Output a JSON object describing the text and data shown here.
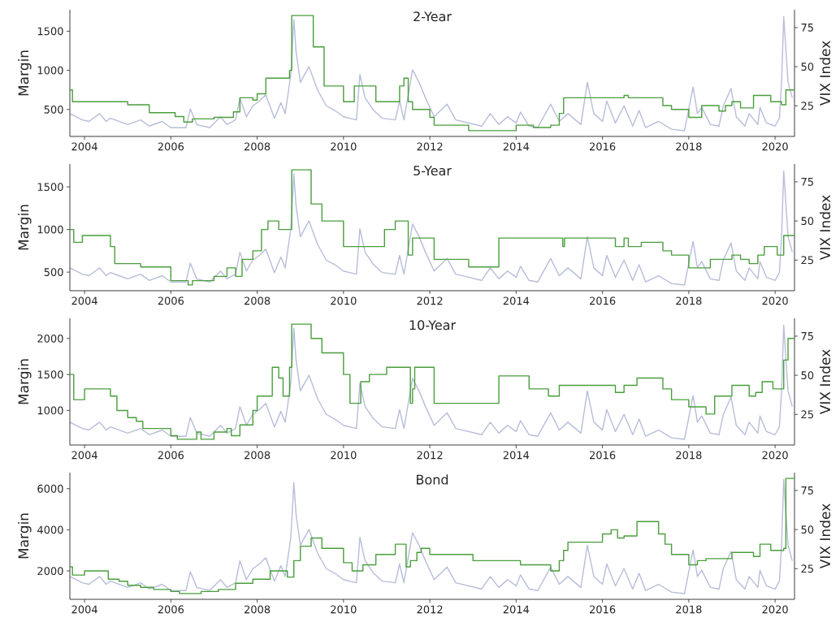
{
  "chart_data": [
    {
      "type": "line",
      "title": "2-Year",
      "ylabel": "Margin",
      "y2label": "VIX Index",
      "xlim": [
        2003.66,
        2020.45
      ],
      "xticks": [
        2004,
        2006,
        2008,
        2010,
        2012,
        2014,
        2016,
        2018,
        2020
      ],
      "ylim": [
        156,
        1774
      ],
      "yticks": [
        500,
        1000,
        1500
      ],
      "y2lim": [
        5.4,
        86.4
      ],
      "y2ticks": [
        25,
        50,
        75
      ],
      "tick_labels": "xy",
      "series": [
        {
          "type": "line",
          "axis": "y2",
          "color": "#b7bdd9",
          "x": [
            2003.66,
            2003.8,
            2003.95,
            2004.1,
            2004.25,
            2004.35,
            2004.5,
            2004.6,
            2004.8,
            2005.0,
            2005.3,
            2005.5,
            2005.8,
            2006.0,
            2006.35,
            2006.45,
            2006.6,
            2006.9,
            2007.15,
            2007.3,
            2007.5,
            2007.6,
            2007.75,
            2007.9,
            2008.05,
            2008.2,
            2008.4,
            2008.55,
            2008.65,
            2008.78,
            2008.85,
            2008.9,
            2009.0,
            2009.2,
            2009.4,
            2009.6,
            2009.8,
            2010.0,
            2010.3,
            2010.38,
            2010.5,
            2010.7,
            2010.9,
            2011.2,
            2011.3,
            2011.4,
            2011.6,
            2011.75,
            2011.9,
            2012.1,
            2012.4,
            2012.6,
            2012.9,
            2013.2,
            2013.4,
            2013.6,
            2013.8,
            2014.0,
            2014.1,
            2014.3,
            2014.5,
            2014.8,
            2015.0,
            2015.2,
            2015.5,
            2015.65,
            2015.8,
            2016.0,
            2016.1,
            2016.3,
            2016.5,
            2016.7,
            2016.85,
            2017.0,
            2017.3,
            2017.6,
            2017.9,
            2018.1,
            2018.2,
            2018.3,
            2018.5,
            2018.7,
            2018.8,
            2018.98,
            2019.1,
            2019.3,
            2019.4,
            2019.6,
            2019.65,
            2019.8,
            2020.0,
            2020.1,
            2020.15,
            2020.2,
            2020.3,
            2020.4
          ],
          "values": [
            20,
            18,
            16,
            15,
            18,
            20,
            15,
            17,
            15,
            13,
            16,
            12,
            15,
            11,
            11,
            23,
            13,
            11,
            18,
            13,
            16,
            30,
            18,
            25,
            28,
            32,
            17,
            27,
            20,
            45,
            80,
            60,
            40,
            50,
            35,
            25,
            22,
            18,
            16,
            45,
            30,
            22,
            17,
            16,
            28,
            16,
            48,
            40,
            30,
            18,
            26,
            16,
            14,
            12,
            20,
            13,
            18,
            14,
            21,
            12,
            11,
            26,
            15,
            20,
            13,
            40,
            20,
            15,
            28,
            14,
            25,
            12,
            22,
            11,
            15,
            10,
            9,
            37,
            20,
            24,
            13,
            12,
            25,
            36,
            18,
            12,
            20,
            13,
            24,
            14,
            12,
            17,
            40,
            82,
            40,
            30
          ]
        },
        {
          "type": "step",
          "color": "#4a9e3c",
          "x": [
            2003.66,
            2003.72,
            2005.0,
            2005.5,
            2006.1,
            2006.3,
            2006.5,
            2007.0,
            2007.45,
            2007.6,
            2007.9,
            2008.0,
            2008.2,
            2008.75,
            2008.8,
            2009.3,
            2009.55,
            2010.0,
            2010.25,
            2010.75,
            2011.3,
            2011.4,
            2011.5,
            2011.6,
            2012.0,
            2012.1,
            2012.9,
            2014.0,
            2014.4,
            2014.8,
            2015.0,
            2015.1,
            2016.5,
            2016.6,
            2017.4,
            2017.6,
            2018.0,
            2018.3,
            2018.7,
            2018.85,
            2019.0,
            2019.2,
            2019.5,
            2019.9,
            2020.15,
            2020.25,
            2020.45
          ],
          "values": [
            750,
            600,
            560,
            460,
            410,
            340,
            380,
            400,
            470,
            650,
            620,
            700,
            900,
            1000,
            1700,
            1300,
            800,
            600,
            800,
            600,
            800,
            900,
            600,
            500,
            400,
            300,
            230,
            300,
            270,
            300,
            450,
            650,
            680,
            650,
            550,
            500,
            400,
            550,
            480,
            550,
            600,
            520,
            680,
            600,
            560,
            750,
            750
          ]
        }
      ]
    },
    {
      "type": "line",
      "title": "5-Year",
      "ylabel": "Margin",
      "y2label": "VIX Index",
      "xlim": [
        2003.66,
        2020.45
      ],
      "xticks": [
        2004,
        2006,
        2008,
        2010,
        2012,
        2014,
        2016,
        2018,
        2020
      ],
      "ylim": [
        282,
        1768
      ],
      "yticks": [
        500,
        1000,
        1500
      ],
      "y2lim": [
        5.4,
        86.4
      ],
      "y2ticks": [
        25,
        50,
        75
      ],
      "tick_labels": "xy",
      "series": [
        {
          "type": "line",
          "axis": "y2",
          "color": "#b7bdd9",
          "x": [
            2003.66,
            2003.8,
            2003.95,
            2004.1,
            2004.25,
            2004.35,
            2004.5,
            2004.6,
            2004.8,
            2005.0,
            2005.3,
            2005.5,
            2005.8,
            2006.0,
            2006.35,
            2006.45,
            2006.6,
            2006.9,
            2007.15,
            2007.3,
            2007.5,
            2007.6,
            2007.75,
            2007.9,
            2008.05,
            2008.2,
            2008.4,
            2008.55,
            2008.65,
            2008.78,
            2008.85,
            2008.9,
            2009.0,
            2009.2,
            2009.4,
            2009.6,
            2009.8,
            2010.0,
            2010.3,
            2010.38,
            2010.5,
            2010.7,
            2010.9,
            2011.2,
            2011.3,
            2011.4,
            2011.6,
            2011.75,
            2011.9,
            2012.1,
            2012.4,
            2012.6,
            2012.9,
            2013.2,
            2013.4,
            2013.6,
            2013.8,
            2014.0,
            2014.1,
            2014.3,
            2014.5,
            2014.8,
            2015.0,
            2015.2,
            2015.5,
            2015.65,
            2015.8,
            2016.0,
            2016.1,
            2016.3,
            2016.5,
            2016.7,
            2016.85,
            2017.0,
            2017.3,
            2017.6,
            2017.9,
            2018.1,
            2018.2,
            2018.3,
            2018.5,
            2018.7,
            2018.8,
            2018.98,
            2019.1,
            2019.3,
            2019.4,
            2019.6,
            2019.65,
            2019.8,
            2020.0,
            2020.1,
            2020.15,
            2020.2,
            2020.3,
            2020.4
          ],
          "values": [
            20,
            18,
            16,
            15,
            18,
            20,
            15,
            17,
            15,
            13,
            16,
            12,
            15,
            11,
            11,
            23,
            13,
            11,
            18,
            13,
            16,
            30,
            18,
            25,
            28,
            32,
            17,
            27,
            20,
            45,
            80,
            60,
            40,
            50,
            35,
            25,
            22,
            18,
            16,
            45,
            30,
            22,
            17,
            16,
            28,
            16,
            48,
            40,
            30,
            18,
            26,
            16,
            14,
            12,
            20,
            13,
            18,
            14,
            21,
            12,
            11,
            26,
            15,
            20,
            13,
            40,
            20,
            15,
            28,
            14,
            25,
            12,
            22,
            11,
            15,
            10,
            9,
            37,
            20,
            24,
            13,
            12,
            25,
            36,
            18,
            12,
            20,
            13,
            24,
            14,
            12,
            17,
            40,
            82,
            40,
            30
          ]
        },
        {
          "type": "step",
          "color": "#4a9e3c",
          "x": [
            2003.66,
            2003.75,
            2003.95,
            2004.6,
            2004.7,
            2005.3,
            2006.0,
            2006.4,
            2006.5,
            2007.0,
            2007.3,
            2007.5,
            2007.65,
            2007.9,
            2008.1,
            2008.25,
            2008.5,
            2008.8,
            2009.25,
            2009.5,
            2010.0,
            2010.95,
            2011.2,
            2011.5,
            2011.6,
            2012.1,
            2012.9,
            2013.6,
            2015.08,
            2015.12,
            2016.3,
            2016.5,
            2016.6,
            2016.9,
            2017.4,
            2017.6,
            2018.0,
            2018.5,
            2019.0,
            2019.2,
            2019.4,
            2019.6,
            2019.75,
            2020.05,
            2020.2,
            2020.45
          ],
          "values": [
            1000,
            850,
            930,
            800,
            600,
            560,
            400,
            350,
            400,
            450,
            550,
            450,
            650,
            750,
            1000,
            1100,
            1000,
            1700,
            1300,
            1100,
            800,
            1000,
            1100,
            700,
            900,
            650,
            560,
            900,
            800,
            900,
            800,
            900,
            800,
            850,
            750,
            700,
            550,
            650,
            700,
            650,
            600,
            700,
            800,
            700,
            930,
            930
          ]
        }
      ]
    },
    {
      "type": "line",
      "title": "10-Year",
      "ylabel": "Margin",
      "y2label": "VIX Index",
      "xlim": [
        2003.66,
        2020.45
      ],
      "xticks": [
        2004,
        2006,
        2008,
        2010,
        2012,
        2014,
        2016,
        2018,
        2020
      ],
      "ylim": [
        520,
        2280
      ],
      "yticks": [
        1000,
        1500,
        2000
      ],
      "y2lim": [
        5.4,
        86.4
      ],
      "y2ticks": [
        25,
        50,
        75
      ],
      "tick_labels": "xy",
      "series": [
        {
          "type": "line",
          "axis": "y2",
          "color": "#b7bdd9",
          "x": [
            2003.66,
            2003.8,
            2003.95,
            2004.1,
            2004.25,
            2004.35,
            2004.5,
            2004.6,
            2004.8,
            2005.0,
            2005.3,
            2005.5,
            2005.8,
            2006.0,
            2006.35,
            2006.45,
            2006.6,
            2006.9,
            2007.15,
            2007.3,
            2007.5,
            2007.6,
            2007.75,
            2007.9,
            2008.05,
            2008.2,
            2008.4,
            2008.55,
            2008.65,
            2008.78,
            2008.85,
            2008.9,
            2009.0,
            2009.2,
            2009.4,
            2009.6,
            2009.8,
            2010.0,
            2010.3,
            2010.38,
            2010.5,
            2010.7,
            2010.9,
            2011.2,
            2011.3,
            2011.4,
            2011.6,
            2011.75,
            2011.9,
            2012.1,
            2012.4,
            2012.6,
            2012.9,
            2013.2,
            2013.4,
            2013.6,
            2013.8,
            2014.0,
            2014.1,
            2014.3,
            2014.5,
            2014.8,
            2015.0,
            2015.2,
            2015.5,
            2015.65,
            2015.8,
            2016.0,
            2016.1,
            2016.3,
            2016.5,
            2016.7,
            2016.85,
            2017.0,
            2017.3,
            2017.6,
            2017.9,
            2018.1,
            2018.2,
            2018.3,
            2018.5,
            2018.7,
            2018.8,
            2018.98,
            2019.1,
            2019.3,
            2019.4,
            2019.6,
            2019.65,
            2019.8,
            2020.0,
            2020.1,
            2020.15,
            2020.2,
            2020.3,
            2020.4
          ],
          "values": [
            20,
            18,
            16,
            15,
            18,
            20,
            15,
            17,
            15,
            13,
            16,
            12,
            15,
            11,
            11,
            23,
            13,
            11,
            18,
            13,
            16,
            30,
            18,
            25,
            28,
            32,
            17,
            27,
            20,
            45,
            80,
            60,
            40,
            50,
            35,
            25,
            22,
            18,
            16,
            45,
            30,
            22,
            17,
            16,
            28,
            16,
            48,
            40,
            30,
            18,
            26,
            16,
            14,
            12,
            20,
            13,
            18,
            14,
            21,
            12,
            11,
            26,
            15,
            20,
            13,
            40,
            20,
            15,
            28,
            14,
            25,
            12,
            22,
            11,
            15,
            10,
            9,
            37,
            20,
            24,
            13,
            12,
            25,
            36,
            18,
            12,
            20,
            13,
            24,
            14,
            12,
            17,
            40,
            82,
            40,
            30
          ]
        },
        {
          "type": "step",
          "color": "#4a9e3c",
          "x": [
            2003.66,
            2003.75,
            2004.0,
            2004.6,
            2004.75,
            2005.0,
            2005.2,
            2005.35,
            2006.0,
            2006.15,
            2006.6,
            2006.7,
            2007.0,
            2007.3,
            2007.4,
            2007.6,
            2007.9,
            2008.0,
            2008.35,
            2008.5,
            2008.6,
            2008.75,
            2008.8,
            2009.25,
            2009.5,
            2010.0,
            2010.15,
            2010.4,
            2010.6,
            2011.0,
            2011.55,
            2011.6,
            2011.65,
            2012.1,
            2013.6,
            2014.3,
            2014.75,
            2015.0,
            2016.3,
            2016.5,
            2016.8,
            2017.4,
            2017.6,
            2018.0,
            2018.4,
            2018.6,
            2019.0,
            2019.4,
            2019.55,
            2019.7,
            2019.95,
            2020.2,
            2020.3,
            2020.45
          ],
          "values": [
            1500,
            1150,
            1300,
            1200,
            1000,
            900,
            850,
            750,
            650,
            600,
            700,
            600,
            700,
            750,
            650,
            800,
            1000,
            1200,
            1600,
            1450,
            1200,
            1600,
            2200,
            2000,
            1800,
            1500,
            1100,
            1400,
            1500,
            1600,
            1100,
            1300,
            1600,
            1100,
            1480,
            1300,
            1200,
            1350,
            1250,
            1350,
            1450,
            1300,
            1150,
            1050,
            950,
            1200,
            1350,
            1200,
            1250,
            1400,
            1300,
            1700,
            2000,
            2000
          ]
        }
      ]
    },
    {
      "type": "line",
      "title": "Bond",
      "ylabel": "Margin",
      "y2label": "VIX Index",
      "xlim": [
        2003.66,
        2020.45
      ],
      "xticks": [
        2004,
        2006,
        2008,
        2010,
        2012,
        2014,
        2016,
        2018,
        2020
      ],
      "ylim": [
        620,
        6780
      ],
      "yticks": [
        2000,
        4000,
        6000
      ],
      "y2lim": [
        5.4,
        86.4
      ],
      "y2ticks": [
        25,
        50,
        75
      ],
      "tick_labels": "xy",
      "series": [
        {
          "type": "line",
          "axis": "y2",
          "color": "#b7bdd9",
          "x": [
            2003.66,
            2003.8,
            2003.95,
            2004.1,
            2004.25,
            2004.35,
            2004.5,
            2004.6,
            2004.8,
            2005.0,
            2005.3,
            2005.5,
            2005.8,
            2006.0,
            2006.35,
            2006.45,
            2006.6,
            2006.9,
            2007.15,
            2007.3,
            2007.5,
            2007.6,
            2007.75,
            2007.9,
            2008.05,
            2008.2,
            2008.4,
            2008.55,
            2008.65,
            2008.78,
            2008.85,
            2008.9,
            2009.0,
            2009.2,
            2009.4,
            2009.6,
            2009.8,
            2010.0,
            2010.3,
            2010.38,
            2010.5,
            2010.7,
            2010.9,
            2011.2,
            2011.3,
            2011.4,
            2011.6,
            2011.75,
            2011.9,
            2012.1,
            2012.4,
            2012.6,
            2012.9,
            2013.2,
            2013.4,
            2013.6,
            2013.8,
            2014.0,
            2014.1,
            2014.3,
            2014.5,
            2014.8,
            2015.0,
            2015.2,
            2015.5,
            2015.65,
            2015.8,
            2016.0,
            2016.1,
            2016.3,
            2016.5,
            2016.7,
            2016.85,
            2017.0,
            2017.3,
            2017.6,
            2017.9,
            2018.1,
            2018.2,
            2018.3,
            2018.5,
            2018.7,
            2018.8,
            2018.98,
            2019.1,
            2019.3,
            2019.4,
            2019.6,
            2019.65,
            2019.8,
            2020.0,
            2020.1,
            2020.15,
            2020.2,
            2020.3,
            2020.4
          ],
          "values": [
            20,
            18,
            16,
            15,
            18,
            20,
            15,
            17,
            15,
            13,
            16,
            12,
            15,
            11,
            11,
            23,
            13,
            11,
            18,
            13,
            16,
            30,
            18,
            25,
            28,
            32,
            17,
            27,
            20,
            45,
            80,
            60,
            40,
            50,
            35,
            25,
            22,
            18,
            16,
            45,
            30,
            22,
            17,
            16,
            28,
            16,
            48,
            40,
            30,
            18,
            26,
            16,
            14,
            12,
            20,
            13,
            18,
            14,
            21,
            12,
            11,
            26,
            15,
            20,
            13,
            40,
            20,
            15,
            28,
            14,
            25,
            12,
            22,
            11,
            15,
            10,
            9,
            37,
            20,
            24,
            13,
            12,
            25,
            36,
            18,
            12,
            20,
            13,
            24,
            14,
            12,
            17,
            40,
            82,
            40,
            30
          ]
        },
        {
          "type": "step",
          "color": "#4a9e3c",
          "x": [
            2003.66,
            2003.72,
            2004.0,
            2004.55,
            2004.8,
            2005.0,
            2005.3,
            2005.6,
            2006.0,
            2006.2,
            2006.7,
            2007.1,
            2007.5,
            2007.9,
            2008.3,
            2008.7,
            2008.85,
            2009.0,
            2009.25,
            2009.5,
            2010.0,
            2010.2,
            2010.45,
            2010.75,
            2011.2,
            2011.45,
            2011.55,
            2011.7,
            2011.8,
            2012.0,
            2013.0,
            2014.1,
            2014.8,
            2015.0,
            2015.1,
            2015.2,
            2016.0,
            2016.2,
            2016.35,
            2016.5,
            2016.8,
            2017.3,
            2017.45,
            2017.6,
            2018.0,
            2018.2,
            2018.4,
            2019.0,
            2019.5,
            2019.65,
            2019.9,
            2020.2,
            2020.25,
            2020.45
          ],
          "values": [
            2200,
            1800,
            2000,
            1600,
            1500,
            1300,
            1200,
            1100,
            1000,
            900,
            1000,
            1100,
            1400,
            1600,
            2000,
            1700,
            2500,
            3200,
            3600,
            3100,
            2400,
            2000,
            2300,
            2800,
            3300,
            2200,
            2500,
            2900,
            3100,
            2800,
            2500,
            2300,
            2000,
            2500,
            3000,
            3400,
            3800,
            4000,
            3600,
            3700,
            4400,
            3800,
            3300,
            2800,
            2300,
            2500,
            2600,
            2900,
            2700,
            3300,
            3000,
            3100,
            6500,
            6500
          ]
        }
      ]
    }
  ]
}
